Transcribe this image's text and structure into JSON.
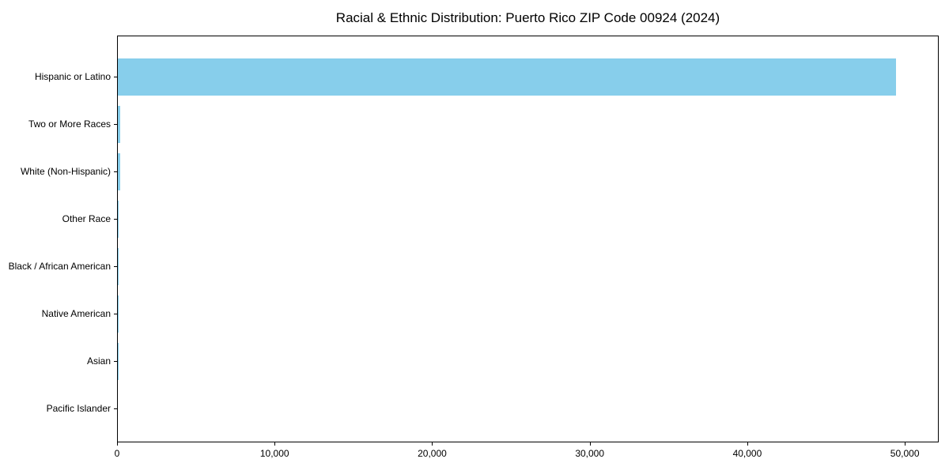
{
  "chart_data": {
    "type": "bar",
    "orientation": "horizontal",
    "title": "Racial & Ethnic Distribution: Puerto Rico ZIP Code 00924 (2024)",
    "categories": [
      "Hispanic or Latino",
      "Two or More Races",
      "White (Non-Hispanic)",
      "Other Race",
      "Black / African American",
      "Native American",
      "Asian",
      "Pacific Islander"
    ],
    "values": [
      49400,
      160,
      140,
      60,
      50,
      15,
      8,
      0
    ],
    "bar_color": "#87CEEB",
    "xlabel": "",
    "ylabel": "",
    "xlim": [
      0,
      52050
    ],
    "xticks": {
      "values": [
        0,
        10000,
        20000,
        30000,
        40000,
        50000
      ],
      "labels": [
        "0",
        "10,000",
        "20,000",
        "30,000",
        "40,000",
        "50,000"
      ]
    },
    "grid": false,
    "legend": null
  }
}
